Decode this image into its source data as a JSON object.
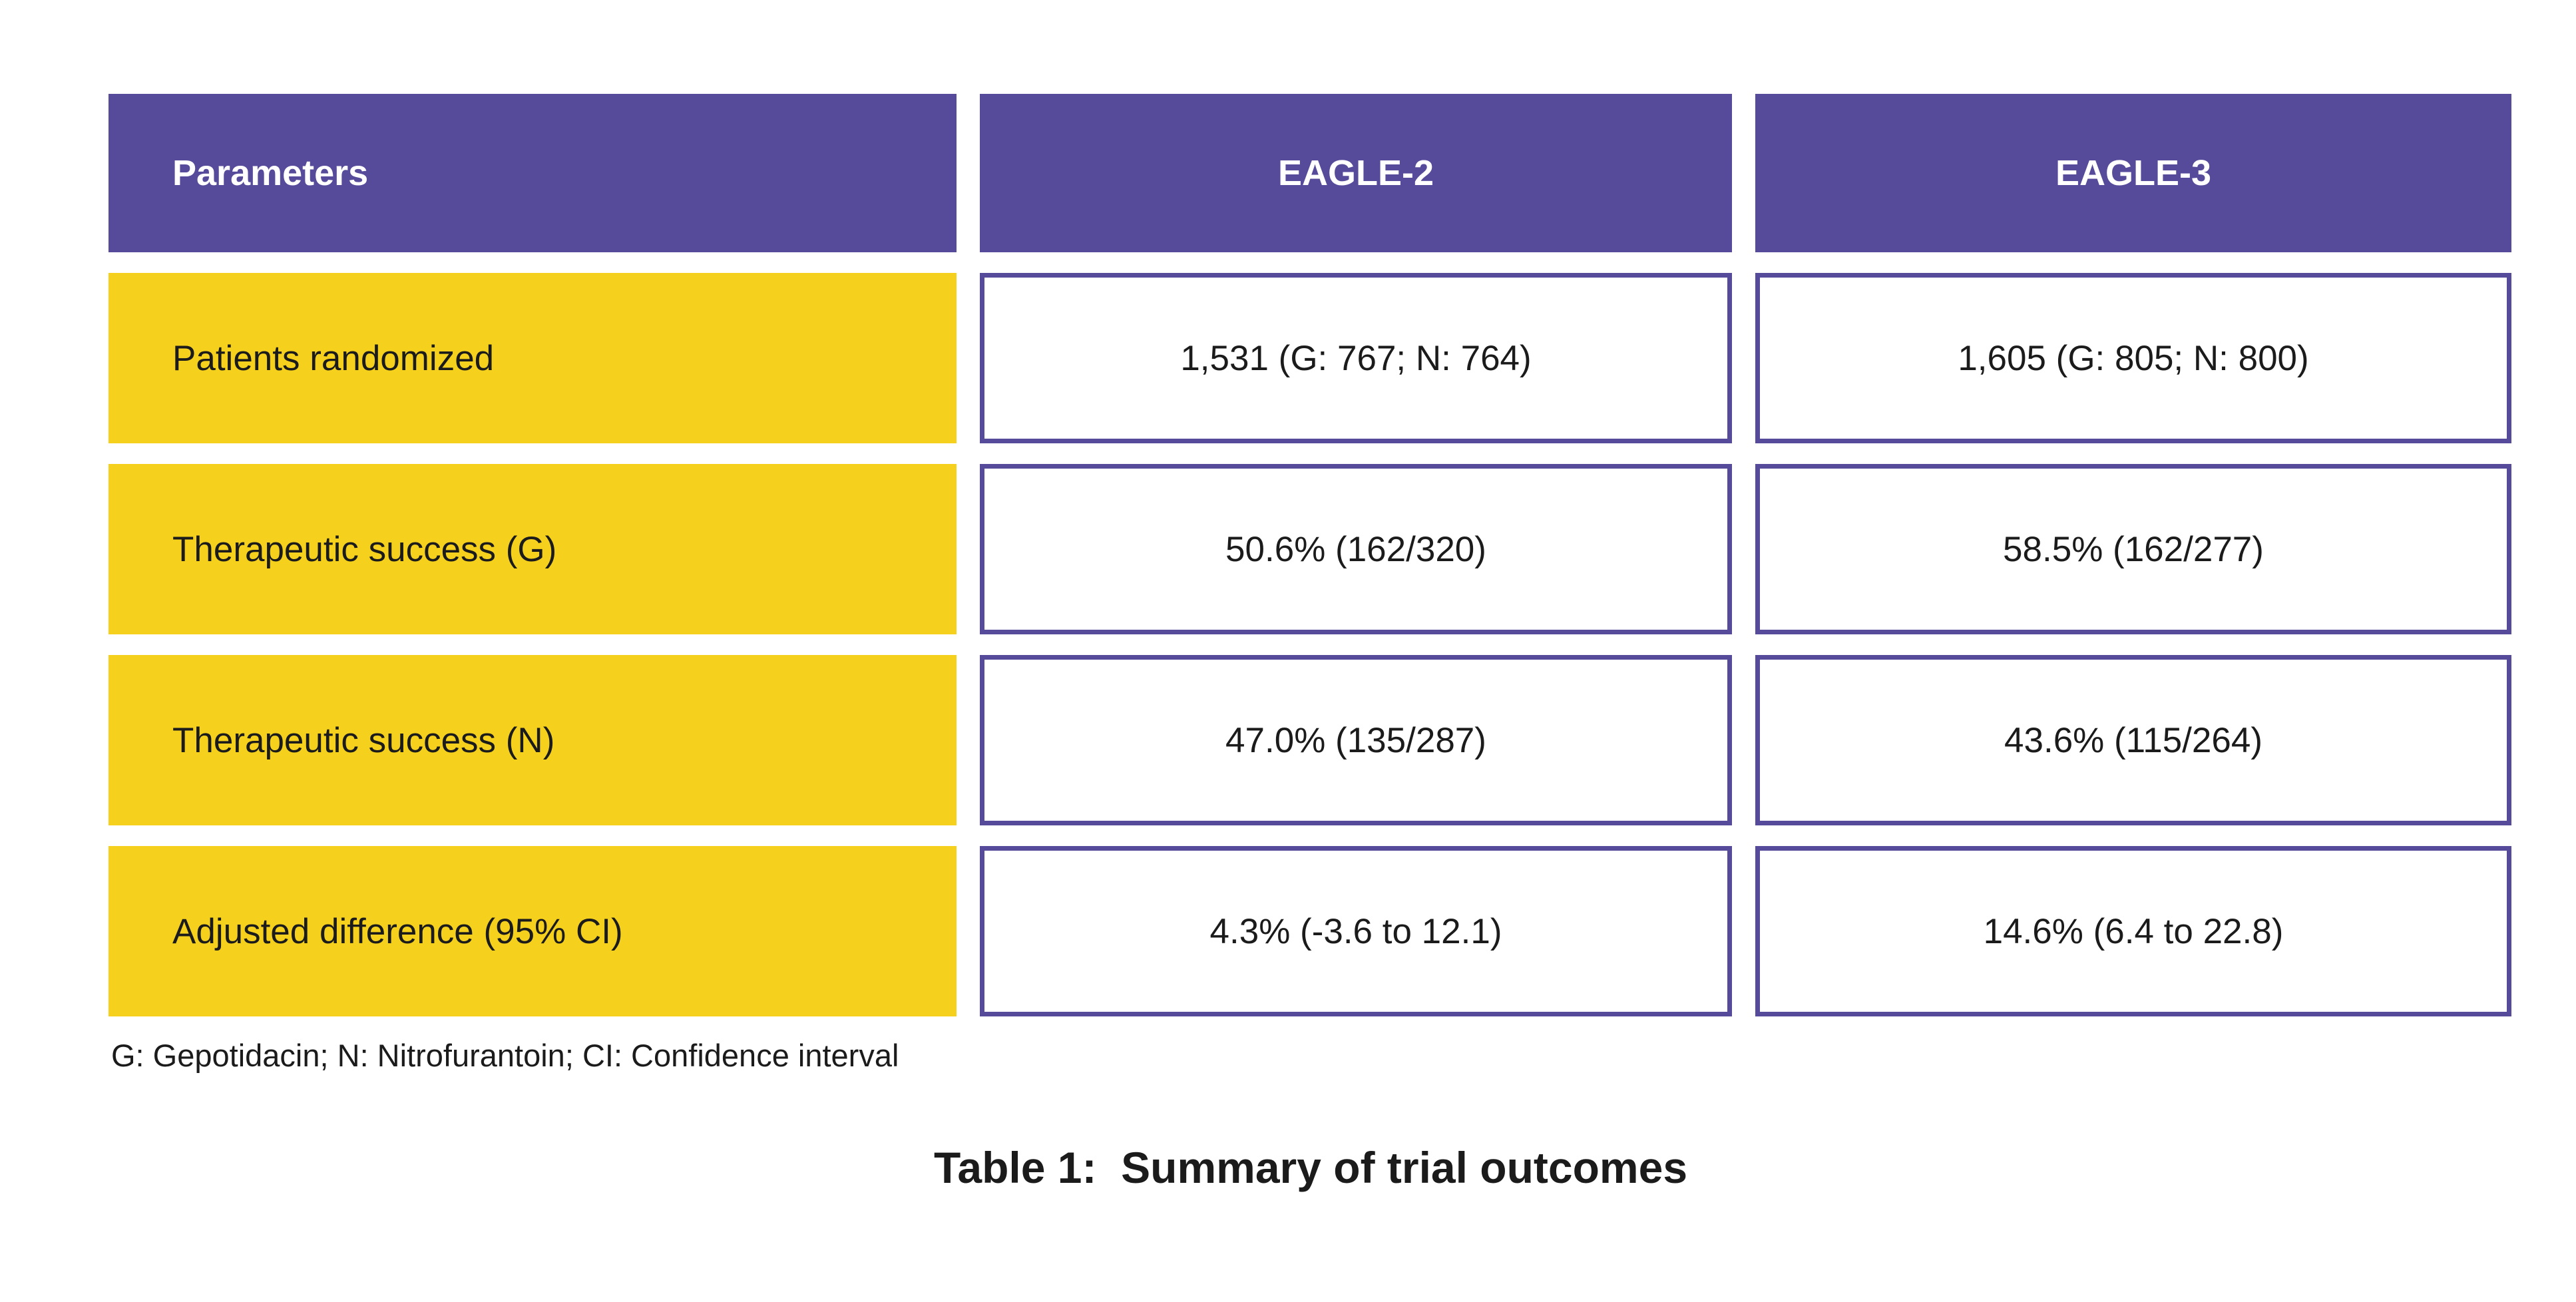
{
  "colors": {
    "purple": "#564A9B",
    "yellow": "#F5D11E",
    "ink": "#1B1B1B",
    "paper": "#FFFFFF"
  },
  "chart_data": {
    "type": "table",
    "title": "Table 1:  Summary of trial outcomes",
    "columns": [
      "Parameters",
      "EAGLE-2",
      "EAGLE-3"
    ],
    "rows": [
      [
        "Patients randomized",
        "1,531 (G: 767; N: 764)",
        "1,605 (G: 805; N: 800)"
      ],
      [
        "Therapeutic success (G)",
        "50.6% (162/320)",
        "58.5% (162/277)"
      ],
      [
        "Therapeutic success (N)",
        "47.0% (135/287)",
        "43.6% (115/264)"
      ],
      [
        "Adjusted difference (95% CI)",
        "4.3% (-3.6 to 12.1)",
        "14.6% (6.4 to 22.8)"
      ]
    ],
    "footnote": "G: Gepotidacin; N: Nitrofurantoin; CI: Confidence interval",
    "layout_hints": {
      "header_bg": "purple",
      "label_bg": "yellow",
      "value_border": "purple",
      "grid": "off"
    }
  }
}
